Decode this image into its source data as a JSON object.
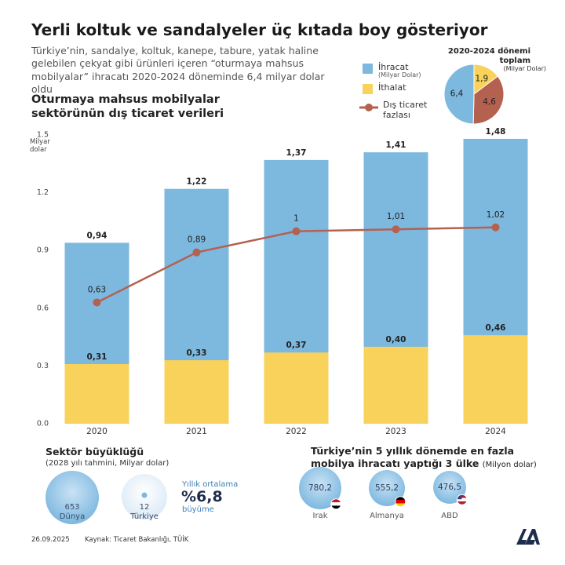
{
  "header": {
    "title": "Yerli koltuk ve sandalyeler üç kıtada boy gösteriyor",
    "subtitle": "Türkiye’nin, sandalye, koltuk, kanepe, tabure, yatak haline gelebilen çekyat gibi ürünleri içeren “oturmaya mahsus mobilyalar” ihracatı 2020-2024 döneminde 6,4 milyar dolar oldu"
  },
  "chart_data": [
    {
      "type": "bar",
      "title": "Oturmaya mahsus mobilyalar sektörünün dış ticaret verileri",
      "y_label": "Milyar dolar",
      "legend_note": "(Milyar Dolar)",
      "categories": [
        "2020",
        "2021",
        "2022",
        "2023",
        "2024"
      ],
      "series": [
        {
          "name": "İhracat",
          "color": "#7db8df",
          "values": [
            0.94,
            1.22,
            1.37,
            1.41,
            1.48
          ],
          "value_labels": [
            "0,94",
            "1,22",
            "1,37",
            "1,41",
            "1,48"
          ]
        },
        {
          "name": "İthalat",
          "color": "#f8d25a",
          "values": [
            0.31,
            0.33,
            0.37,
            0.4,
            0.46
          ],
          "value_labels": [
            "0,31",
            "0,33",
            "0,37",
            "0,40",
            "0,46"
          ]
        },
        {
          "name": "Dış ticaret fazlası",
          "type": "line",
          "color": "#b5614f",
          "values": [
            0.63,
            0.89,
            1,
            1.01,
            1.02
          ],
          "value_labels": [
            "0,63",
            "0,89",
            "1",
            "1,01",
            "1,02"
          ]
        }
      ],
      "ylim": [
        0,
        1.5
      ],
      "yticks": [
        {
          "value": 0,
          "label": "0.0"
        },
        0.3,
        0.6,
        0.9,
        1.2,
        1.5
      ],
      "grid": false
    },
    {
      "type": "pie",
      "title": "2020-2024 dönemi toplam",
      "subtitle": "(Milyar Dolar)",
      "values": [
        1.9,
        4.6,
        6.4
      ],
      "value_labels": [
        "1,9",
        "4,6",
        "6,4"
      ],
      "colors": [
        "#f8d25a",
        "#b5614f",
        "#7db8df"
      ]
    }
  ],
  "sector": {
    "title": "Sektör büyüklüğü",
    "subtitle": "(2028 yılı tahmini, Milyar dolar)",
    "items": [
      {
        "value": "653",
        "label": "Dünya"
      },
      {
        "value": "12",
        "label": "Türkiye"
      }
    ],
    "growth_top": "Yıllık ortalama",
    "growth_value": "%6,8",
    "growth_bottom": "büyüme"
  },
  "countries": {
    "title": "Türkiye’nin 5 yıllık dönemde en fazla mobilya ihracatı yaptığı 3 ülke",
    "unit": "(Milyon dolar)",
    "items": [
      {
        "value": "780,2",
        "label": "Irak"
      },
      {
        "value": "555,2",
        "label": "Almanya"
      },
      {
        "value": "476,5",
        "label": "ABD"
      }
    ]
  },
  "footer": {
    "date": "26.09.2025",
    "source": "Kaynak: Ticaret Bakanlığı, TÜİK"
  }
}
